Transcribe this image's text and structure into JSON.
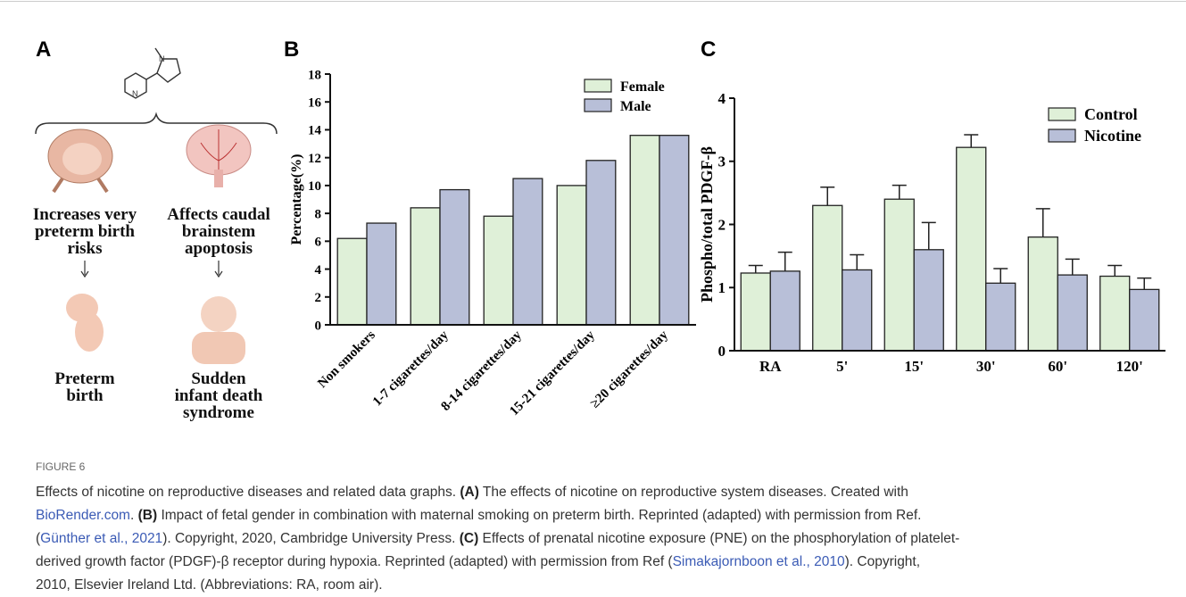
{
  "panel_a": {
    "label": "A",
    "left_effect": [
      "Increases very",
      "preterm birth",
      "risks"
    ],
    "right_effect": [
      "Affects caudal",
      "brainstem",
      "apoptosis"
    ],
    "left_outcome": [
      "Preterm",
      "birth"
    ],
    "right_outcome": [
      "Sudden",
      "infant death",
      "syndrome"
    ]
  },
  "chart_data": [
    {
      "type": "bar",
      "panel_label": "B",
      "y_label": "Percentage(%)",
      "categories": [
        "Non smokers",
        "1-7 cigarettes/day",
        "8-14 cigarettes/day",
        "15-21 cigarettes/day",
        "≥20 cigarettes/day"
      ],
      "series": [
        {
          "name": "Female",
          "color": "#dff0d8",
          "values": [
            6.2,
            8.4,
            7.8,
            10.0,
            13.6
          ]
        },
        {
          "name": "Male",
          "color": "#b8bfd8",
          "values": [
            7.3,
            9.7,
            10.5,
            11.8,
            13.6
          ]
        }
      ],
      "ylim": [
        0,
        18
      ],
      "yticks": [
        0,
        2,
        4,
        6,
        8,
        10,
        12,
        14,
        16,
        18
      ],
      "legend": "upper right"
    },
    {
      "type": "bar",
      "panel_label": "C",
      "y_label": "Phospho/total PDGF-β",
      "categories": [
        "RA",
        "5'",
        "15'",
        "30'",
        "60'",
        "120'"
      ],
      "series": [
        {
          "name": "Control",
          "color": "#dff0d8",
          "values": [
            1.23,
            2.3,
            2.4,
            3.22,
            1.8,
            1.18
          ],
          "errors": [
            0.12,
            0.29,
            0.22,
            0.2,
            0.45,
            0.17
          ]
        },
        {
          "name": "Nicotine",
          "color": "#b8bfd8",
          "values": [
            1.26,
            1.28,
            1.6,
            1.07,
            1.2,
            0.97
          ],
          "errors": [
            0.3,
            0.24,
            0.43,
            0.23,
            0.25,
            0.18
          ]
        }
      ],
      "ylim": [
        0,
        4
      ],
      "yticks": [
        0,
        1,
        2,
        3,
        4
      ],
      "legend": "upper right"
    }
  ],
  "caption": {
    "label": "FIGURE 6",
    "lines": [
      [
        "Effects of nicotine on reproductive diseases and related data graphs. ",
        "(A)",
        " The effects of nicotine on reproductive system diseases. Created with"
      ],
      [
        "BioRender.com",
        ". ",
        "(B)",
        " Impact of fetal gender in combination with maternal smoking on preterm birth. Reprinted (adapted) with permission from Ref."
      ],
      [
        "(",
        "Günther et al., 2021",
        "). Copyright, 2020, Cambridge University Press. ",
        "(C)",
        " Effects of prenatal nicotine exposure (PNE) on the phosphorylation of platelet-"
      ],
      [
        "derived growth factor (PDGF)-β receptor during hypoxia. Reprinted (adapted) with permission from Ref (",
        "Simakajornboon et al., 2010",
        "). Copyright,"
      ],
      [
        "2010, Elsevier Ireland Ltd. (Abbreviations: RA, room air)."
      ]
    ]
  }
}
